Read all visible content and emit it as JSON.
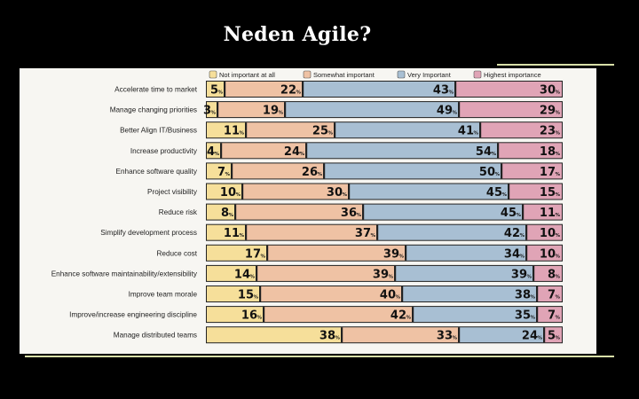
{
  "slide": {
    "title": "Neden Agile?"
  },
  "chart_data": {
    "type": "bar",
    "orientation": "horizontal",
    "stacked": true,
    "normalized": true,
    "title": "",
    "xlabel": "",
    "ylabel": "",
    "xlim": [
      0,
      100
    ],
    "legend_position": "top",
    "value_suffix": "%",
    "categories": [
      "Accelerate time to market",
      "Manage changing priorities",
      "Better Align IT/Business",
      "Increase productivity",
      "Enhance software quality",
      "Project visibility",
      "Reduce risk",
      "Simplify development process",
      "Reduce cost",
      "Enhance software maintainability/extensibility",
      "Improve team morale",
      "Improve/increase engineering discipline",
      "Manage distributed teams"
    ],
    "series": [
      {
        "name": "Not important at all",
        "color": "#f6df9a",
        "values": [
          5,
          3,
          11,
          4,
          7,
          10,
          8,
          11,
          17,
          14,
          15,
          16,
          38
        ]
      },
      {
        "name": "Somewhat important",
        "color": "#efc2a4",
        "values": [
          22,
          19,
          25,
          24,
          26,
          30,
          36,
          37,
          39,
          39,
          40,
          42,
          33
        ]
      },
      {
        "name": "Very Important",
        "color": "#a8bfd3",
        "values": [
          43,
          49,
          41,
          54,
          50,
          45,
          45,
          42,
          34,
          39,
          38,
          35,
          24
        ]
      },
      {
        "name": "Highest importance",
        "color": "#e0a4b6",
        "values": [
          30,
          29,
          23,
          18,
          17,
          15,
          11,
          10,
          10,
          8,
          7,
          7,
          5
        ]
      }
    ]
  }
}
